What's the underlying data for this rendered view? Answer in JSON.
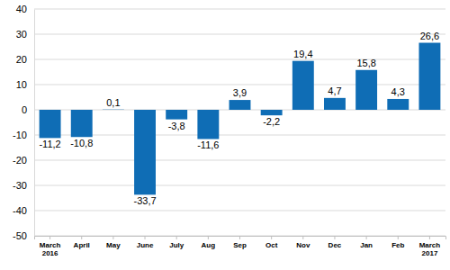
{
  "chart_data": {
    "type": "bar",
    "categories": [
      "March 2016",
      "April",
      "May",
      "June",
      "July",
      "Aug",
      "Sep",
      "Oct",
      "Nov",
      "Dec",
      "Jan",
      "Feb",
      "March 2017"
    ],
    "values": [
      -11.2,
      -10.8,
      0.1,
      -33.7,
      -3.8,
      -11.6,
      3.9,
      -2.2,
      19.4,
      4.7,
      15.8,
      4.3,
      26.6
    ],
    "value_labels": [
      "-11,2",
      "-10,8",
      "0,1",
      "-33,7",
      "-3,8",
      "-11,6",
      "3,9",
      "-2,2",
      "19,4",
      "4,7",
      "15,8",
      "4,3",
      "26,6"
    ],
    "color": "#0f6db5",
    "ylim": [
      -50,
      40
    ],
    "yticks": [
      -50,
      -40,
      -30,
      -20,
      -10,
      0,
      10,
      20,
      30,
      40
    ],
    "grid": true,
    "data_labels": true
  }
}
